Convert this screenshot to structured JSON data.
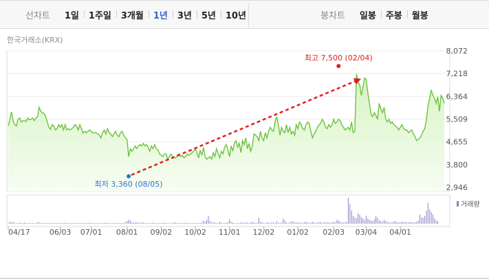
{
  "tabs": {
    "line_chart": {
      "label": "선차트",
      "items": [
        {
          "label": "1일",
          "active": false
        },
        {
          "label": "1주일",
          "active": false
        },
        {
          "label": "3개월",
          "active": false
        },
        {
          "label": "1년",
          "active": true
        },
        {
          "label": "3년",
          "active": false
        },
        {
          "label": "5년",
          "active": false
        },
        {
          "label": "10년",
          "active": false
        }
      ]
    },
    "candle_chart": {
      "label": "봉차트",
      "items": [
        {
          "label": "일봉",
          "active": false
        },
        {
          "label": "주봉",
          "active": false
        },
        {
          "label": "월봉",
          "active": false
        }
      ]
    }
  },
  "source_label": "한국거래소(KRX)",
  "colors": {
    "price_line": "#6cc23e",
    "price_fill_top": "#d6f3c2",
    "high": "#e21d1d",
    "low": "#2f6fd8",
    "arrow": "#e21d1d",
    "volume": "#8a83c5",
    "active_tab": "#3a5fd0"
  },
  "chart_data": {
    "type": "area",
    "y_ticks": [
      "8,072",
      "7,218",
      "6,364",
      "5,509",
      "4,655",
      "3,800",
      "2,946"
    ],
    "ylim": [
      2946,
      8072
    ],
    "x_ticks": [
      "04/17",
      "06/03",
      "07/01",
      "08/01",
      "09/02",
      "10/02",
      "11/01",
      "12/02",
      "01/02",
      "02/03",
      "03/04",
      "04/01"
    ],
    "x_tick_index": [
      0,
      32,
      51,
      73,
      94,
      115,
      136,
      157,
      178,
      200,
      220,
      241
    ],
    "price": [
      5250,
      5500,
      5780,
      5450,
      5300,
      5250,
      5500,
      5550,
      5400,
      5450,
      5450,
      5420,
      5550,
      5480,
      5500,
      5550,
      5450,
      5550,
      5600,
      5950,
      5800,
      5750,
      5720,
      5600,
      5400,
      5200,
      5130,
      5300,
      5250,
      5100,
      5150,
      5300,
      5200,
      5300,
      5100,
      5300,
      5100,
      5150,
      5100,
      5150,
      5200,
      5300,
      5250,
      5100,
      5300,
      5150,
      4980,
      5050,
      5000,
      5050,
      5100,
      5050,
      4980,
      5000,
      5000,
      4950,
      4900,
      4800,
      5000,
      5100,
      4950,
      5150,
      5000,
      4950,
      4850,
      4950,
      5050,
      4900,
      4850,
      5000,
      5050,
      4900,
      4800,
      4750,
      4100,
      4400,
      4300,
      4400,
      4500,
      4400,
      4500,
      4550,
      4500,
      4600,
      4500,
      4550,
      4450,
      4300,
      4500,
      4400,
      4550,
      4400,
      4350,
      4200,
      4150,
      4100,
      4200,
      4200,
      4000,
      4100,
      4200,
      4100,
      4050,
      4050,
      4150,
      4200,
      4100,
      4150,
      4050,
      4100,
      4200,
      4150,
      4200,
      4250,
      4300,
      4400,
      4250,
      4050,
      4350,
      4150,
      4450,
      4100,
      4000,
      4050,
      4100,
      4000,
      4250,
      4100,
      4400,
      4200,
      4050,
      4300,
      4200,
      4450,
      4550,
      4350,
      4100,
      4500,
      4300,
      4600,
      4700,
      4450,
      4600,
      4250,
      4700,
      4550,
      4800,
      4400,
      4600,
      4300,
      4500,
      4950,
      4900,
      4850,
      4700,
      5050,
      4800,
      4700,
      5000,
      4800,
      5050,
      5200,
      5100,
      5050,
      5400,
      5600,
      5300,
      4900,
      5200,
      5050,
      5000,
      5300,
      5000,
      5200,
      4950,
      5050,
      4900,
      5300,
      5150,
      5400,
      5300,
      5150,
      5100,
      5300,
      5400,
      5350,
      5050,
      4800,
      4950,
      5050,
      5200,
      5300,
      5350,
      5500,
      5400,
      5200,
      5150,
      5300,
      5200,
      5300,
      5500,
      5350,
      5400,
      5500,
      5450,
      5300,
      5200,
      5100,
      5150,
      5200,
      5100,
      5400,
      5000,
      5050,
      7200,
      6900,
      6800,
      6400,
      6700,
      7050,
      7000,
      6500,
      6100,
      5700,
      5600,
      5750,
      5650,
      5500,
      6100,
      5900,
      5750,
      5950,
      5500,
      5400,
      5500,
      5350,
      5400,
      5300,
      5250,
      5200,
      5100,
      5200,
      5300,
      5150,
      5100,
      5100,
      5000,
      5050,
      5100,
      4950,
      4850,
      4700,
      4750,
      4800,
      4900,
      5050,
      5150,
      5500,
      6000,
      6300,
      6600,
      6400,
      6300,
      6100,
      6350,
      5800,
      6400,
      6300,
      6100
    ],
    "volume": [
      1,
      3,
      2,
      3,
      1,
      1,
      1,
      2,
      1,
      1,
      2,
      1,
      1,
      1,
      1,
      1,
      1,
      1,
      2,
      2,
      1,
      1,
      1,
      1,
      1,
      1,
      1,
      1,
      1,
      1,
      1,
      1,
      1,
      1,
      1,
      2,
      1,
      1,
      1,
      1,
      1,
      1,
      1,
      1,
      1,
      1,
      1,
      1,
      1,
      1,
      2,
      1,
      1,
      1,
      1,
      1,
      1,
      1,
      1,
      1,
      2,
      1,
      1,
      1,
      1,
      1,
      1,
      1,
      1,
      1,
      1,
      1,
      2,
      4,
      6,
      5,
      2,
      2,
      2,
      2,
      2,
      1,
      2,
      2,
      1,
      1,
      1,
      1,
      1,
      2,
      1,
      1,
      1,
      1,
      1,
      1,
      2,
      1,
      1,
      1,
      1,
      1,
      2,
      2,
      1,
      1,
      1,
      1,
      1,
      2,
      1,
      1,
      1,
      1,
      1,
      1,
      1,
      1,
      1,
      2,
      5,
      3,
      6,
      12,
      4,
      2,
      2,
      2,
      1,
      1,
      3,
      2,
      1,
      1,
      2,
      2,
      7,
      3,
      2,
      1,
      1,
      1,
      1,
      2,
      2,
      1,
      2,
      2,
      1,
      2,
      3,
      2,
      1,
      2,
      9,
      3,
      2,
      1,
      1,
      2,
      2,
      1,
      2,
      2,
      1,
      4,
      2,
      1,
      2,
      8,
      5,
      2,
      1,
      2,
      3,
      4,
      2,
      2,
      2,
      2,
      1,
      2,
      2,
      3,
      2,
      1,
      2,
      3,
      2,
      1,
      2,
      2,
      3,
      1,
      2,
      2,
      2,
      2,
      1,
      2,
      3,
      2,
      6,
      5,
      3,
      2,
      2,
      2,
      3,
      40,
      30,
      20,
      12,
      10,
      8,
      16,
      14,
      10,
      8,
      6,
      12,
      8,
      6,
      5,
      4,
      7,
      12,
      9,
      5,
      4,
      3,
      6,
      4,
      3,
      2,
      2,
      2,
      3,
      4,
      2,
      2,
      2,
      3,
      2,
      3,
      2,
      2,
      3,
      2,
      2,
      2,
      3,
      5,
      14,
      10,
      9,
      12,
      20,
      32,
      22,
      18,
      14,
      8,
      5,
      4
    ],
    "high": {
      "label": "최고 7,500 (02/04)",
      "index": 203,
      "value": 7500
    },
    "low": {
      "label": "최저 3,360 (08/05)",
      "index": 74,
      "value": 3360
    },
    "volume_legend": "거래량"
  }
}
